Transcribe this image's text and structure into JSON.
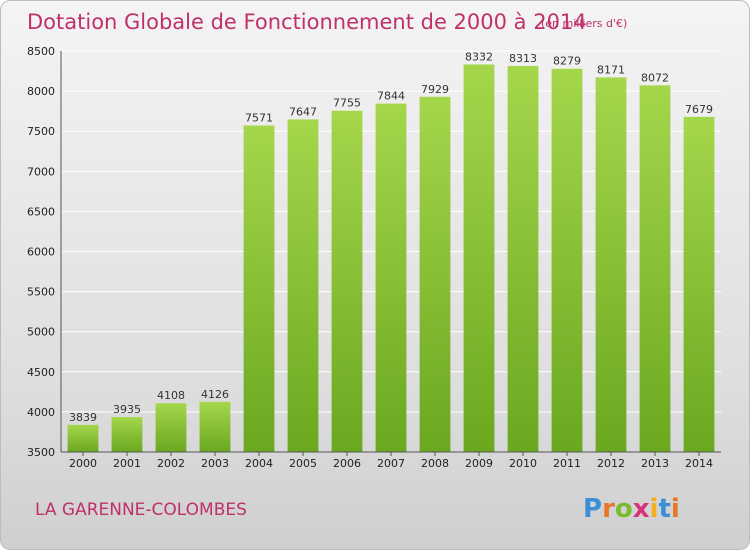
{
  "chart_data": {
    "type": "bar",
    "title": "Dotation Globale de Fonctionnement de 2000 à 2014",
    "subtitle": "(en milliers d'€)",
    "categories": [
      "2000",
      "2001",
      "2002",
      "2003",
      "2004",
      "2005",
      "2006",
      "2007",
      "2008",
      "2009",
      "2010",
      "2011",
      "2012",
      "2013",
      "2014"
    ],
    "values": [
      3839,
      3935,
      4108,
      4126,
      7571,
      7647,
      7755,
      7844,
      7929,
      8332,
      8313,
      8279,
      8171,
      8072,
      7679
    ],
    "ylim": [
      3500,
      8500
    ],
    "yticks": [
      3500,
      4000,
      4500,
      5000,
      5500,
      6000,
      6500,
      7000,
      7500,
      8000,
      8500
    ],
    "grid": true,
    "bar_color": "#7cbc2c",
    "bar_color_light": "#a5d64c"
  },
  "footer": {
    "commune": "LA GARENNE-COLOMBES",
    "logo_letters": [
      "P",
      "r",
      "o",
      "x",
      "i",
      "t",
      "i"
    ],
    "logo_colors": [
      "#3a8fd8",
      "#e8762a",
      "#7cbc2c",
      "#d8327a",
      "#f0b020",
      "#3a8fd8",
      "#e8762a"
    ]
  }
}
